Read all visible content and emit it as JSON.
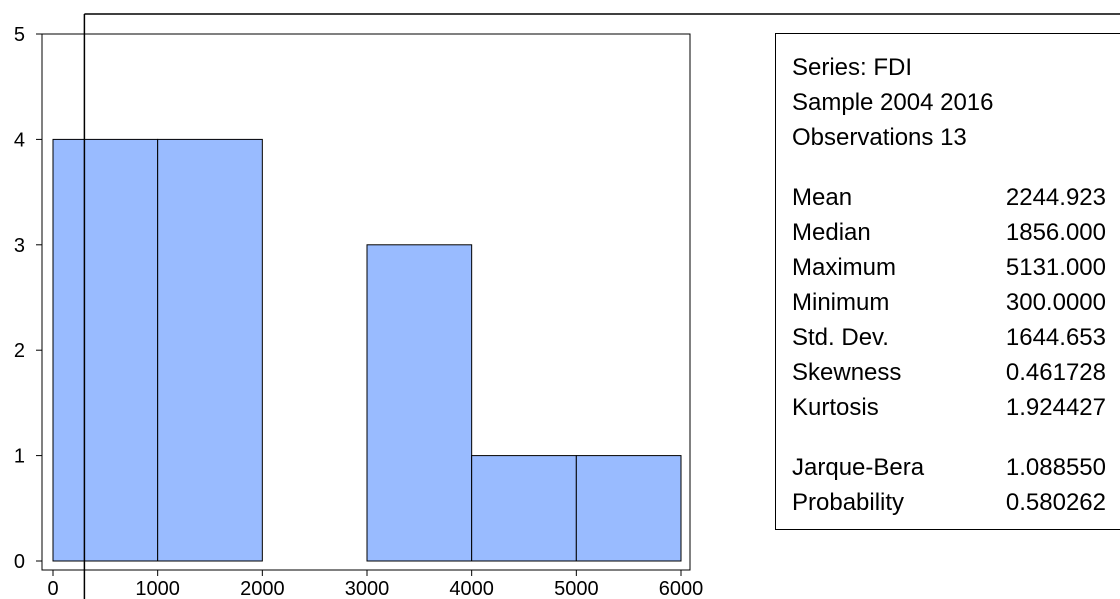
{
  "chart_data": {
    "type": "bar",
    "bins": [
      {
        "from": 0,
        "to": 1000,
        "count": 4
      },
      {
        "from": 1000,
        "to": 2000,
        "count": 4
      },
      {
        "from": 2000,
        "to": 3000,
        "count": 0
      },
      {
        "from": 3000,
        "to": 4000,
        "count": 3
      },
      {
        "from": 4000,
        "to": 5000,
        "count": 1
      },
      {
        "from": 5000,
        "to": 6000,
        "count": 1
      }
    ],
    "xlim": [
      0,
      6000
    ],
    "ylim": [
      0,
      5
    ],
    "x_ticks": [
      0,
      1000,
      2000,
      3000,
      4000,
      5000,
      6000
    ],
    "y_ticks": [
      0,
      1,
      2,
      3,
      4,
      5
    ],
    "bar_color": "#99BBFF",
    "marker_x": 300,
    "title": "",
    "xlabel": "",
    "ylabel": "",
    "grid": false
  },
  "stats": {
    "series": "Series: FDI",
    "sample": "Sample 2004 2016",
    "observations": "Observations 13",
    "group1": [
      {
        "label": "Mean",
        "value": "2244.923"
      },
      {
        "label": "Median",
        "value": "1856.000"
      },
      {
        "label": "Maximum",
        "value": "5131.000"
      },
      {
        "label": "Minimum",
        "value": "300.0000"
      },
      {
        "label": "Std. Dev.",
        "value": "1644.653"
      },
      {
        "label": "Skewness",
        "value": "0.461728"
      },
      {
        "label": "Kurtosis",
        "value": "1.924427"
      }
    ],
    "group2": [
      {
        "label": "Jarque-Bera",
        "value": "1.088550"
      },
      {
        "label": "Probability",
        "value": "0.580262"
      }
    ]
  }
}
